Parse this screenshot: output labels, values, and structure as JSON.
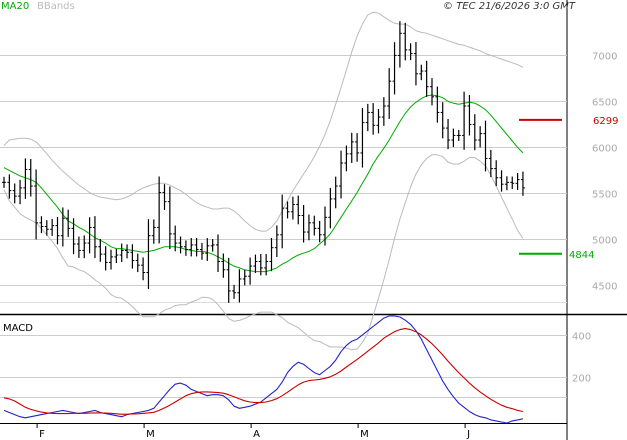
{
  "chart_data": [
    {
      "type": "line",
      "panel": "price",
      "legend": [
        {
          "label": "MA20",
          "color": "#00aa00"
        },
        {
          "label": "BBands",
          "color": "#bbbbbb"
        }
      ],
      "copyright": "© TEC 21/6/2026 3:0 GMT",
      "ylim": [
        4200,
        7450
      ],
      "yticks": [
        "4500",
        "5000",
        "5500",
        "6000",
        "6500",
        "7000"
      ],
      "ytick_values": [
        4500,
        5000,
        5500,
        6000,
        6500,
        7000
      ],
      "xticks": [
        "F",
        "M",
        "A",
        "M",
        "J"
      ],
      "xtick_index": [
        6,
        26,
        46,
        66,
        86
      ],
      "n_bars": 98,
      "close": [
        5620,
        5530,
        5470,
        5560,
        5760,
        5580,
        5180,
        5140,
        5110,
        5150,
        5040,
        5230,
        5120,
        4950,
        4880,
        4960,
        5130,
        4920,
        4840,
        4750,
        4810,
        4830,
        4880,
        4860,
        4770,
        4720,
        4640,
        5040,
        5130,
        5510,
        5410,
        5060,
        4960,
        4920,
        4890,
        4940,
        4890,
        4850,
        4930,
        4940,
        4760,
        4670,
        4440,
        4420,
        4570,
        4600,
        4710,
        4760,
        4690,
        4760,
        4910,
        5050,
        5340,
        5300,
        5380,
        5260,
        5080,
        5180,
        5120,
        5050,
        5240,
        5440,
        5580,
        5830,
        5930,
        6060,
        5940,
        6270,
        6380,
        6240,
        6330,
        6450,
        6720,
        7000,
        7240,
        7060,
        7020,
        6800,
        6830,
        6660,
        6550,
        6380,
        6210,
        6080,
        6130,
        6130,
        6450,
        6250,
        6080,
        6150,
        5880,
        5770,
        5670,
        5600,
        5620,
        5610,
        5650,
        5560
      ],
      "ma20": [
        5780,
        5750,
        5720,
        5690,
        5670,
        5650,
        5620,
        5560,
        5490,
        5420,
        5350,
        5270,
        5200,
        5170,
        5130,
        5100,
        5060,
        5020,
        4990,
        4960,
        4920,
        4900,
        4900,
        4890,
        4880,
        4870,
        4860,
        4870,
        4880,
        4900,
        4920,
        4920,
        4920,
        4910,
        4890,
        4880,
        4870,
        4870,
        4860,
        4840,
        4810,
        4780,
        4740,
        4710,
        4690,
        4670,
        4660,
        4650,
        4650,
        4650,
        4670,
        4690,
        4730,
        4760,
        4800,
        4830,
        4850,
        4870,
        4900,
        4950,
        5000,
        5060,
        5150,
        5240,
        5330,
        5420,
        5510,
        5610,
        5710,
        5820,
        5910,
        5990,
        6080,
        6180,
        6280,
        6370,
        6440,
        6490,
        6530,
        6560,
        6570,
        6560,
        6540,
        6500,
        6480,
        6470,
        6480,
        6490,
        6480,
        6450,
        6410,
        6350,
        6280,
        6210,
        6140,
        6070,
        6000,
        5940
      ],
      "bb_upper": [
        6020,
        6080,
        6090,
        6100,
        6100,
        6090,
        6060,
        6000,
        5930,
        5860,
        5800,
        5740,
        5690,
        5640,
        5590,
        5550,
        5510,
        5480,
        5460,
        5450,
        5440,
        5430,
        5440,
        5460,
        5490,
        5530,
        5560,
        5580,
        5600,
        5610,
        5610,
        5590,
        5560,
        5530,
        5490,
        5440,
        5400,
        5370,
        5350,
        5330,
        5330,
        5340,
        5340,
        5310,
        5260,
        5200,
        5150,
        5110,
        5090,
        5090,
        5130,
        5200,
        5310,
        5420,
        5530,
        5620,
        5710,
        5800,
        5900,
        6010,
        6140,
        6290,
        6470,
        6650,
        6840,
        7040,
        7210,
        7340,
        7440,
        7470,
        7460,
        7420,
        7380,
        7350,
        7340,
        7340,
        7310,
        7270,
        7250,
        7240,
        7220,
        7200,
        7180,
        7160,
        7140,
        7120,
        7110,
        7090,
        7070,
        7050,
        7020,
        7000,
        6980,
        6960,
        6940,
        6920,
        6900,
        6870
      ],
      "bb_lower": [
        5540,
        5420,
        5350,
        5280,
        5240,
        5210,
        5180,
        5120,
        5050,
        4980,
        4900,
        4800,
        4710,
        4700,
        4670,
        4650,
        4610,
        4560,
        4520,
        4470,
        4400,
        4370,
        4360,
        4320,
        4270,
        4210,
        4160,
        4160,
        4160,
        4190,
        4230,
        4250,
        4280,
        4290,
        4290,
        4320,
        4340,
        4370,
        4370,
        4350,
        4290,
        4220,
        4140,
        4110,
        4120,
        4140,
        4170,
        4190,
        4210,
        4210,
        4210,
        4180,
        4150,
        4100,
        4070,
        4040,
        3990,
        3940,
        3900,
        3890,
        3860,
        3830,
        3830,
        3830,
        3820,
        3800,
        3810,
        3880,
        3980,
        4170,
        4360,
        4560,
        4780,
        5010,
        5220,
        5400,
        5570,
        5710,
        5810,
        5880,
        5920,
        5920,
        5900,
        5840,
        5820,
        5820,
        5850,
        5890,
        5890,
        5850,
        5800,
        5700,
        5580,
        5460,
        5340,
        5220,
        5100,
        5010
      ],
      "levels": [
        {
          "label": "6299",
          "value": 6299,
          "color": "#cc0000"
        },
        {
          "label": "4844",
          "value": 4844,
          "color": "#00aa00"
        }
      ]
    },
    {
      "type": "line",
      "panel": "macd",
      "title": "MACD",
      "ylim": [
        -20,
        490
      ],
      "yticks": [
        "200",
        "400"
      ],
      "ytick_values": [
        200,
        400
      ],
      "series": [
        {
          "color": "#2222cc",
          "values": [
            40,
            30,
            20,
            10,
            5,
            10,
            15,
            20,
            25,
            30,
            35,
            40,
            35,
            30,
            25,
            30,
            35,
            40,
            30,
            25,
            20,
            15,
            10,
            20,
            25,
            30,
            35,
            40,
            50,
            80,
            110,
            140,
            165,
            170,
            160,
            140,
            130,
            120,
            110,
            115,
            115,
            110,
            90,
            60,
            50,
            55,
            60,
            70,
            80,
            100,
            120,
            140,
            175,
            220,
            250,
            270,
            260,
            240,
            220,
            210,
            230,
            250,
            280,
            320,
            350,
            370,
            380,
            400,
            420,
            440,
            460,
            480,
            490,
            490,
            485,
            470,
            450,
            420,
            380,
            330,
            280,
            230,
            180,
            140,
            105,
            75,
            55,
            35,
            20,
            10,
            5,
            -5,
            -10,
            -15,
            -20,
            -10,
            -5,
            0
          ]
        },
        {
          "color": "#cc0000",
          "values": [
            100,
            95,
            85,
            70,
            55,
            45,
            38,
            32,
            28,
            26,
            25,
            25,
            25,
            26,
            26,
            26,
            27,
            28,
            28,
            27,
            26,
            24,
            22,
            22,
            23,
            24,
            26,
            28,
            31,
            40,
            52,
            65,
            80,
            95,
            110,
            120,
            125,
            128,
            128,
            127,
            125,
            122,
            115,
            105,
            95,
            86,
            80,
            77,
            77,
            80,
            87,
            96,
            110,
            127,
            145,
            162,
            175,
            182,
            185,
            188,
            193,
            200,
            212,
            228,
            247,
            265,
            283,
            302,
            322,
            342,
            362,
            384,
            400,
            415,
            425,
            430,
            425,
            415,
            400,
            380,
            358,
            332,
            304,
            275,
            247,
            220,
            195,
            170,
            148,
            128,
            110,
            93,
            78,
            65,
            55,
            48,
            40,
            35
          ]
        }
      ]
    }
  ]
}
